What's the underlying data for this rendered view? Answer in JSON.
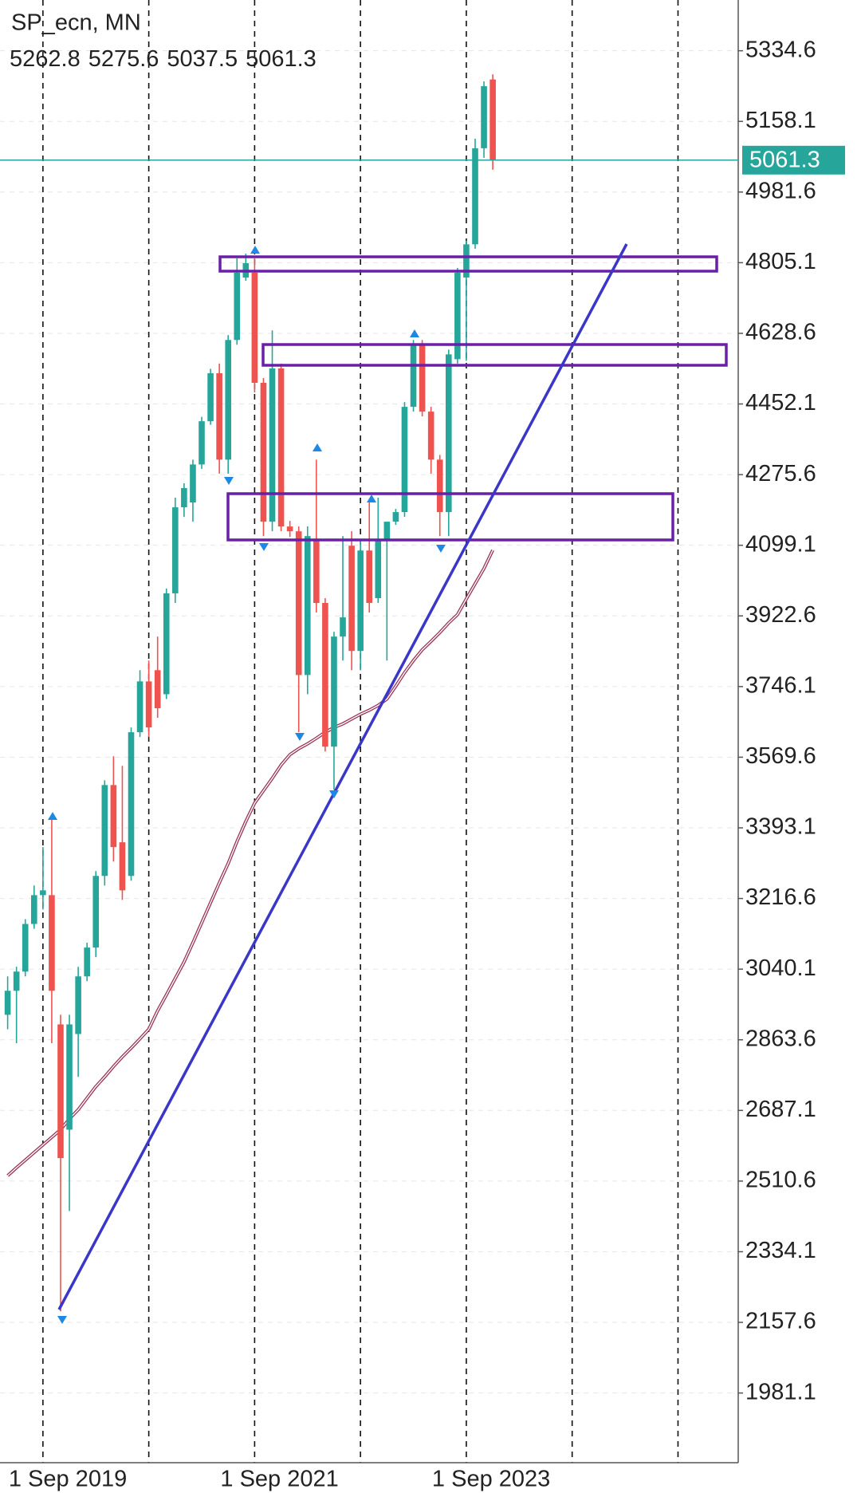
{
  "chart_data": {
    "type": "candlestick",
    "title": "SP_ecn, MN",
    "categories": [
      null,
      null,
      null,
      null,
      "1 Sep 2019",
      null,
      null,
      null,
      null,
      null,
      null,
      null,
      null,
      null,
      null,
      null,
      null,
      null,
      null,
      null,
      null,
      null,
      null,
      null,
      null,
      null,
      null,
      null,
      "1 Sep 2021",
      null,
      null,
      null,
      null,
      null,
      null,
      null,
      null,
      null,
      null,
      null,
      null,
      null,
      null,
      null,
      null,
      null,
      null,
      null,
      null,
      null,
      null,
      null,
      "1 Sep 2023",
      null,
      null,
      null
    ],
    "open": [
      2926,
      2986,
      3034,
      3153,
      3225,
      3225,
      2902,
      2639,
      2878,
      3022,
      3094,
      3273,
      3500,
      3357,
      3273,
      3632,
      3759,
      3787,
      3727,
      3979,
      4194,
      4206,
      4301,
      4409,
      4529,
      4313,
      4612,
      4768,
      4780,
      4505,
      4158,
      4541,
      4146,
      4134,
      3775,
      4110,
      3955,
      3596,
      3871,
      4098,
      3835,
      4086,
      3967,
      4110,
      4158,
      4182,
      4445,
      4600,
      4433,
      4313,
      4182,
      4564,
      4768,
      4851,
      5091,
      5262.8
    ],
    "high": [
      3022,
      3046,
      3165,
      3249,
      3345,
      3417,
      2926,
      2926,
      3046,
      3106,
      3285,
      3512,
      3572,
      3548,
      3644,
      3787,
      3811,
      3871,
      3991,
      4218,
      4254,
      4313,
      4420,
      4540,
      4553,
      4624,
      4816,
      4828,
      4816,
      4517,
      4636,
      4553,
      4160,
      4146,
      4146,
      4313,
      3967,
      3883,
      4122,
      4134,
      4110,
      4206,
      4218,
      4122,
      4190,
      4457,
      4612,
      4612,
      4445,
      4325,
      4588,
      4792,
      4860,
      5115,
      5258,
      5275.6
    ],
    "low": [
      2890,
      2855,
      3022,
      3141,
      3189,
      2855,
      2185,
      2436,
      2771,
      3010,
      3070,
      3249,
      3309,
      3213,
      3261,
      3620,
      3620,
      3668,
      3715,
      3955,
      4170,
      4158,
      4290,
      4400,
      4278,
      4278,
      4600,
      4760,
      4481,
      4122,
      4134,
      4134,
      4120,
      3632,
      3727,
      3931,
      3584,
      3488,
      3811,
      3787,
      3787,
      3931,
      3955,
      3811,
      4150,
      4170,
      4433,
      4421,
      4278,
      4122,
      4122,
      4553,
      4560,
      4840,
      5067,
      5037.5
    ],
    "close": [
      2986,
      3034,
      3153,
      3225,
      3237,
      2986,
      2568,
      2902,
      3022,
      3094,
      3273,
      3500,
      3345,
      3237,
      3632,
      3759,
      3644,
      3692,
      3979,
      4194,
      4242,
      4301,
      4409,
      4529,
      4313,
      4612,
      4780,
      4804,
      4505,
      4158,
      4541,
      4146,
      4134,
      3775,
      4122,
      3955,
      3596,
      3871,
      3919,
      3835,
      4086,
      3955,
      4110,
      4158,
      4182,
      4445,
      4600,
      4433,
      4313,
      4182,
      4576,
      4780,
      4851,
      5091,
      5246,
      5061.3
    ],
    "up_color": "#26a69a",
    "down_color": "#ef5350",
    "ma": {
      "color": "#9c3358",
      "values": [
        2524,
        2544,
        2563,
        2582,
        2601,
        2620,
        2639,
        2666,
        2689,
        2718,
        2747,
        2771,
        2797,
        2821,
        2843,
        2866,
        2890,
        2936,
        2976,
        3017,
        3058,
        3106,
        3156,
        3206,
        3256,
        3304,
        3359,
        3409,
        3455,
        3486,
        3517,
        3550,
        3576,
        3591,
        3603,
        3617,
        3632,
        3644,
        3653,
        3665,
        3677,
        3687,
        3699,
        3715,
        3747,
        3781,
        3811,
        3838,
        3859,
        3881,
        3905,
        3926,
        3965,
        4003,
        4041,
        4087
      ]
    },
    "ylim": [
      1807,
      5461.4
    ],
    "yticks": [
      5334.6,
      5158.1,
      4981.6,
      4805.1,
      4628.6,
      4452.1,
      4275.6,
      4099.1,
      3922.6,
      3746.1,
      3569.6,
      3393.1,
      3216.6,
      3040.1,
      2863.6,
      2687.1,
      2510.6,
      2334.1,
      2157.6,
      1981.1
    ],
    "grid": true
  }
}
